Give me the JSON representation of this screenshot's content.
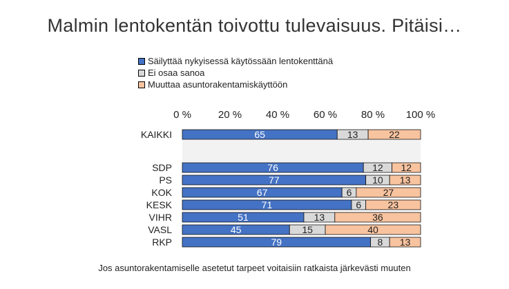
{
  "chart_data": {
    "type": "bar",
    "stacked": true,
    "orientation": "horizontal",
    "title": "Malmin lentokentän toivottu tulevaisuus. Pitäisi…",
    "categories": [
      "KAIKKI",
      "SDP",
      "PS",
      "KOK",
      "KESK",
      "VIHR",
      "VASL",
      "RKP"
    ],
    "series": [
      {
        "name": "Säilyttää nykyisessä käytössään lentokenttänä",
        "color": "#4472C4",
        "label_color": "#ffffff",
        "values": [
          65,
          76,
          77,
          67,
          71,
          51,
          45,
          79
        ]
      },
      {
        "name": "Ei osaa sanoa",
        "color": "#D9D9D9",
        "label_color": "#222222",
        "values": [
          13,
          12,
          10,
          6,
          6,
          13,
          15,
          8
        ]
      },
      {
        "name": "Muuttaa asuntorakentamiskäyttöön",
        "color": "#F8C39F",
        "label_color": "#222222",
        "values": [
          22,
          12,
          13,
          27,
          23,
          36,
          40,
          13
        ]
      }
    ],
    "xlim": [
      0,
      100
    ],
    "x_ticks": [
      "0 %",
      "20 %",
      "40 %",
      "60 %",
      "80 %",
      "100 %"
    ],
    "xlabel": "",
    "ylabel": "",
    "grid": false,
    "legend_position": "top",
    "footnote": "Jos asuntorakentamiselle asetetut tarpeet voitaisiin ratkaista järkevästi muuten",
    "separator_color": "#F2F2F2"
  }
}
